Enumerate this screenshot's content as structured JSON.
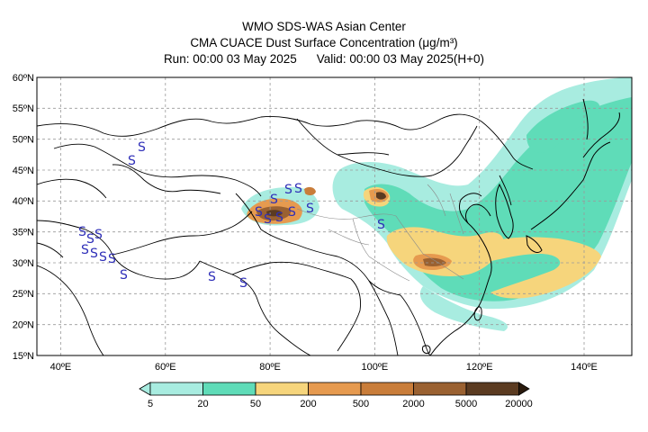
{
  "header": {
    "line1": "WMO SDS-WAS Asian Center",
    "line2": "CMA CUACE Dust Surface Concentration (μg/m³)",
    "run_label": "Run: 00:00 03 May 2025",
    "valid_label": "Valid: 00:00 03 May 2025(H+0)"
  },
  "map": {
    "lat_labels": [
      "60ºN",
      "55ºN",
      "50ºN",
      "45ºN",
      "40ºN",
      "35ºN",
      "30ºN",
      "25ºN",
      "20ºN",
      "15ºN"
    ],
    "lon_labels": [
      "40ºE",
      "60ºE",
      "80ºE",
      "100ºE",
      "120ºE",
      "140ºE"
    ],
    "dust_symbol": "S"
  },
  "colorbar": {
    "ticks": [
      "5",
      "20",
      "50",
      "200",
      "500",
      "2000",
      "5000",
      "20000"
    ],
    "colors": [
      "#a8ece0",
      "#5fdcb8",
      "#f6d57c",
      "#e69a4f",
      "#c97d3a",
      "#9a6131",
      "#5b3b21",
      "#2a1a0d"
    ]
  }
}
